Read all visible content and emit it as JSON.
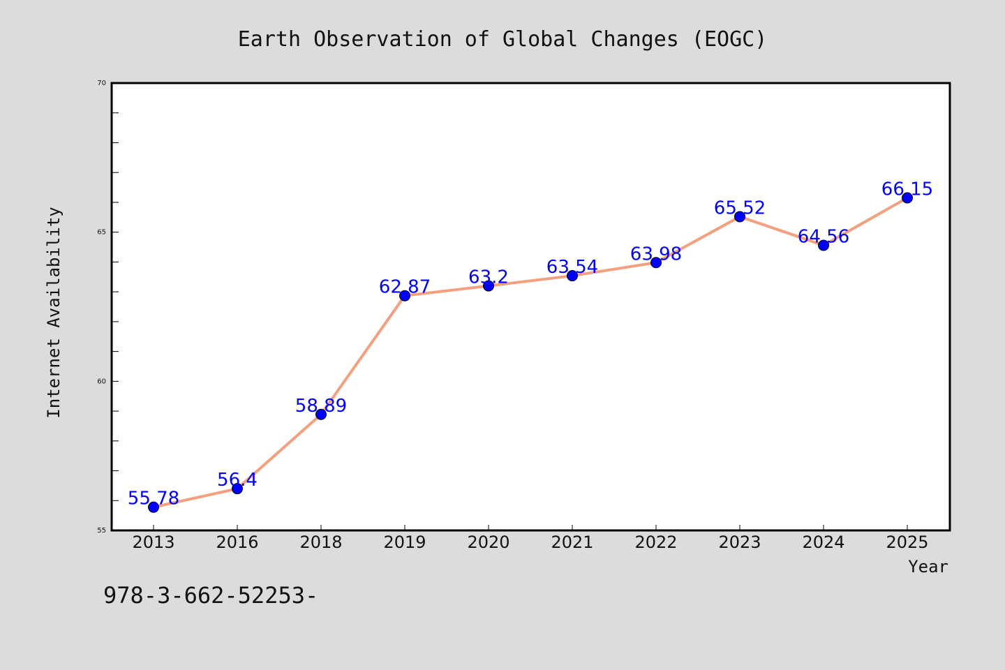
{
  "chart_data": {
    "type": "line",
    "title": "Earth Observation of Global Changes (EOGC)",
    "xlabel": "Year",
    "ylabel": "Internet Availability",
    "categories": [
      "2013",
      "2016",
      "2018",
      "2019",
      "2020",
      "2021",
      "2022",
      "2023",
      "2024",
      "2025"
    ],
    "series": [
      {
        "values": [
          55.78,
          56.4,
          58.89,
          62.87,
          63.2,
          63.54,
          63.98,
          65.52,
          64.56,
          66.15
        ],
        "data_labels": [
          "55.78",
          "56.4",
          "58.89",
          "62.87",
          "63.2",
          "63.54",
          "63.98",
          "65.52",
          "64.56",
          "66.15"
        ],
        "line_color": "#f4a07f",
        "marker_color": "#0000ff"
      }
    ],
    "ylim": [
      55,
      70
    ],
    "y_major_ticks": [
      55,
      60,
      65,
      70
    ],
    "y_minor_step": 1,
    "grid": false,
    "legend": "none"
  },
  "footer": {
    "text": "978-3-662-52253-"
  },
  "colors": {
    "background": "#dcdcdc",
    "plot_background": "#ffffff",
    "line": "#f4a07f",
    "marker": "#0000ff",
    "data_label": "#0000ff"
  }
}
